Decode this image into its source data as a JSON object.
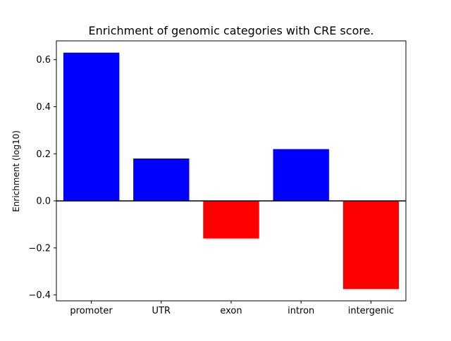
{
  "chart_data": {
    "type": "bar",
    "title": "Enrichment of genomic categories with CRE score.",
    "xlabel": "",
    "ylabel": "Enrichment (log10)",
    "categories": [
      "promoter",
      "UTR",
      "exon",
      "intron",
      "intergenic"
    ],
    "values": [
      0.63,
      0.18,
      -0.16,
      0.22,
      -0.375
    ],
    "bar_colors": [
      "#0000ff",
      "#0000ff",
      "#ff0000",
      "#0000ff",
      "#ff0000"
    ],
    "positive_color": "#0000ff",
    "negative_color": "#ff0000",
    "ylim": [
      -0.425,
      0.68
    ],
    "ytick_values": [
      -0.4,
      -0.2,
      0.0,
      0.2,
      0.4,
      0.6
    ],
    "ytick_labels": [
      "−0.4",
      "−0.2",
      "0.0",
      "0.2",
      "0.4",
      "0.6"
    ],
    "grid": false,
    "legend": "none",
    "zero_line": true,
    "axis_color": "#000000",
    "background_color": "#ffffff"
  }
}
